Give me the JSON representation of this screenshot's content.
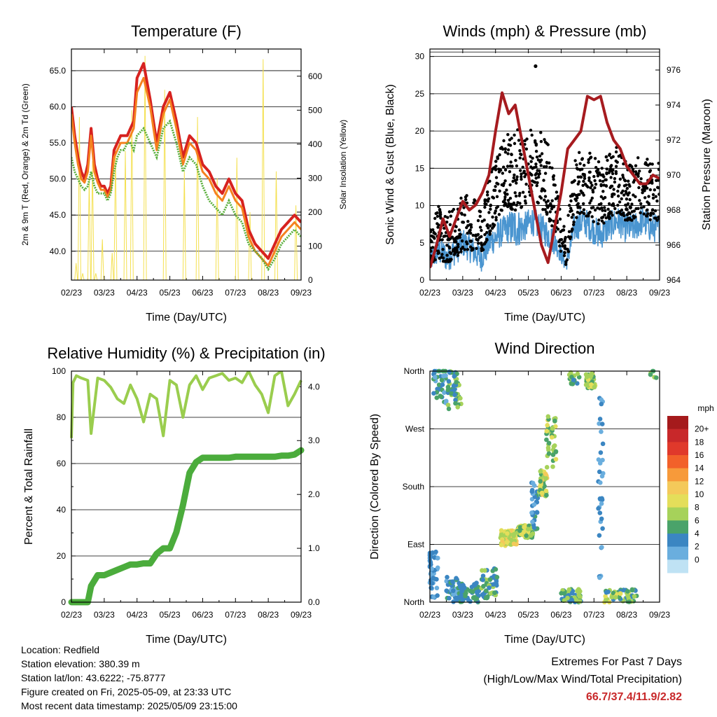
{
  "chart_data": [
    {
      "type": "line",
      "title": "Temperature (F)",
      "xlabel": "Time (Day/UTC)",
      "ylabel": "2m & 9m T (Red, Orange) & 2m Td (Green)",
      "y2label": "Solar Insolation (Yellow)",
      "x_ticks": [
        "02/23",
        "03/23",
        "04/23",
        "05/23",
        "06/23",
        "07/23",
        "08/23",
        "09/23"
      ],
      "ylim": [
        36,
        68
      ],
      "y_ticks": [
        "40.0",
        "45.0",
        "50.0",
        "55.0",
        "60.0",
        "65.0"
      ],
      "y_tick_values": [
        40,
        45,
        50,
        55,
        60,
        65
      ],
      "y2lim": [
        0,
        680
      ],
      "y2_ticks": [
        "0",
        "100",
        "200",
        "300",
        "400",
        "500",
        "600"
      ],
      "y2_tick_values": [
        0,
        100,
        200,
        300,
        400,
        500,
        600
      ],
      "grid": true,
      "x": [
        0,
        0.1,
        0.2,
        0.3,
        0.4,
        0.5,
        0.6,
        0.7,
        0.8,
        0.9,
        1.0,
        1.1,
        1.2,
        1.3,
        1.4,
        1.5,
        1.6,
        1.7,
        1.8,
        1.9,
        2.0,
        2.2,
        2.4,
        2.6,
        2.8,
        3.0,
        3.2,
        3.4,
        3.6,
        3.8,
        4.0,
        4.2,
        4.4,
        4.6,
        4.8,
        5.0,
        5.2,
        5.4,
        5.6,
        5.8,
        6.0,
        6.2,
        6.4,
        6.6,
        6.8,
        7.0
      ],
      "series": [
        {
          "role": "T2m",
          "color": "#d7221f",
          "values": [
            60,
            56,
            53,
            51,
            50,
            52,
            57,
            52,
            50,
            49,
            49,
            48,
            49,
            54,
            55,
            56,
            56,
            56,
            57,
            58,
            64,
            66,
            61,
            55,
            60,
            62,
            58,
            53,
            56,
            55,
            52,
            51,
            49,
            48,
            50,
            48,
            47,
            43,
            41,
            40,
            39,
            41,
            43,
            44,
            45,
            44
          ]
        },
        {
          "role": "T9m",
          "color": "#f5811f",
          "values": [
            59,
            55,
            52,
            50,
            49.5,
            51,
            56,
            51,
            49.5,
            48.5,
            48.5,
            47.5,
            48.5,
            53,
            54,
            55,
            55,
            55,
            56,
            57,
            62,
            64,
            60,
            54,
            59,
            61,
            57,
            52,
            55,
            54,
            51,
            50,
            48,
            47,
            49,
            47,
            46,
            42,
            40,
            39,
            38,
            40,
            42,
            43,
            44,
            43
          ]
        },
        {
          "role": "Td2m",
          "color": "#5aaf3c",
          "values": [
            53,
            51,
            50,
            49,
            48.5,
            49,
            51,
            49,
            48,
            48,
            48,
            47,
            48,
            51,
            53,
            54,
            54,
            55,
            55,
            54,
            56,
            57,
            55,
            53,
            57,
            58,
            55,
            51,
            53,
            52,
            49,
            47,
            46,
            45,
            47,
            45,
            44,
            41,
            40,
            39,
            37.5,
            39,
            41,
            42,
            43,
            42
          ]
        },
        {
          "role": "Solar",
          "color": "#f4e050",
          "values": [
            0,
            50,
            480,
            20,
            0,
            300,
            350,
            20,
            0,
            120,
            0,
            0,
            80,
            380,
            0,
            0,
            380,
            0,
            500,
            0,
            0,
            660,
            0,
            0,
            560,
            0,
            0,
            320,
            0,
            480,
            0,
            0,
            300,
            0,
            0,
            360,
            0,
            200,
            0,
            650,
            0,
            320,
            0,
            0,
            220,
            0
          ]
        }
      ]
    },
    {
      "type": "scatter",
      "title": "Winds (mph) & Pressure (mb)",
      "xlabel": "Time (Day/UTC)",
      "ylabel": "Sonic Wind & Gust (Blue, Black)",
      "y2label": "Station Pressure (Maroon)",
      "x_ticks": [
        "02/23",
        "03/23",
        "04/23",
        "05/23",
        "06/23",
        "07/23",
        "08/23",
        "09/23"
      ],
      "ylim": [
        0,
        31
      ],
      "y_ticks": [
        "0",
        "5",
        "10",
        "15",
        "20",
        "25",
        "30"
      ],
      "y_tick_values": [
        0,
        5,
        10,
        15,
        20,
        25,
        30
      ],
      "y2lim": [
        964,
        977.2
      ],
      "y2_ticks": [
        "964",
        "966",
        "968",
        "970",
        "972",
        "974",
        "976"
      ],
      "y2_tick_values": [
        964,
        966,
        968,
        970,
        972,
        974,
        976
      ],
      "grid": true,
      "series": [
        {
          "role": "Wind",
          "color": "#4a95d0",
          "note": "band",
          "low": [
            1,
            2,
            1,
            2,
            3,
            2,
            1,
            3,
            4,
            5,
            4,
            5,
            6,
            5,
            4,
            3,
            1,
            5,
            6,
            5,
            4,
            5,
            6,
            5,
            5,
            6,
            5,
            5
          ],
          "high": [
            4,
            6,
            5,
            6,
            7,
            6,
            5,
            7,
            8,
            9,
            10,
            9,
            10,
            9,
            8,
            6,
            3,
            9,
            10,
            9,
            8,
            9,
            10,
            9,
            9,
            10,
            9,
            9
          ]
        },
        {
          "role": "Gust",
          "color": "#000000",
          "low": [
            2,
            3,
            2,
            3,
            4,
            4,
            3,
            6,
            8,
            10,
            9,
            10,
            11,
            10,
            8,
            5,
            2,
            8,
            9,
            8,
            7,
            8,
            9,
            8,
            8,
            9,
            8,
            8
          ],
          "high": [
            7,
            10,
            9,
            10,
            12,
            11,
            10,
            14,
            17,
            20,
            21,
            19,
            21,
            20,
            18,
            12,
            6,
            17,
            18,
            17,
            16,
            17,
            18,
            16,
            16,
            17,
            16,
            16
          ]
        },
        {
          "role": "Pressure",
          "color": "#a61b1f",
          "x": [
            0,
            0.2,
            0.4,
            0.6,
            0.8,
            1.0,
            1.2,
            1.4,
            1.6,
            1.8,
            2.0,
            2.2,
            2.4,
            2.6,
            2.8,
            3.0,
            3.2,
            3.4,
            3.6,
            3.8,
            4.0,
            4.2,
            4.4,
            4.6,
            4.8,
            5.0,
            5.2,
            5.4,
            5.6,
            5.8,
            6.0,
            6.2,
            6.4,
            6.6,
            6.8,
            7.0
          ],
          "values": [
            964.7,
            966,
            967.5,
            966.5,
            967.5,
            968.5,
            968,
            968.3,
            969,
            970,
            972.5,
            974.7,
            973.5,
            974,
            972,
            970,
            968,
            966,
            965,
            967,
            969,
            971.5,
            972,
            972.5,
            974.5,
            974.3,
            974.5,
            973,
            972,
            971.5,
            970.5,
            970,
            969.5,
            969.5,
            970,
            969.8
          ]
        }
      ]
    },
    {
      "type": "line",
      "title": "Relative Humidity (%) & Precipitation (in)",
      "xlabel": "Time (Day/UTC)",
      "ylabel": "Percent & Total Rainfall",
      "x_ticks": [
        "02/23",
        "03/23",
        "04/23",
        "05/23",
        "06/23",
        "07/23",
        "08/23",
        "09/23"
      ],
      "ylim": [
        0,
        100
      ],
      "y_ticks": [
        "0",
        "20",
        "40",
        "60",
        "80",
        "100"
      ],
      "y_tick_values": [
        0,
        20,
        40,
        60,
        80,
        100
      ],
      "y2lim": [
        0,
        4.29
      ],
      "y2_ticks": [
        "0.0",
        "1.0",
        "2.0",
        "3.0",
        "4.0"
      ],
      "y2_tick_values": [
        0,
        1,
        2,
        3,
        4
      ],
      "grid": true,
      "x": [
        0,
        0.05,
        0.15,
        0.3,
        0.5,
        0.6,
        0.8,
        1.0,
        1.2,
        1.4,
        1.6,
        1.8,
        2.0,
        2.2,
        2.4,
        2.6,
        2.8,
        3.0,
        3.2,
        3.4,
        3.6,
        3.8,
        4.0,
        4.2,
        4.4,
        4.6,
        4.8,
        5.0,
        5.2,
        5.4,
        5.6,
        5.8,
        6.0,
        6.2,
        6.4,
        6.6,
        6.8,
        7.0
      ],
      "series": [
        {
          "role": "RH",
          "color": "#9acd4e",
          "values": [
            71,
            95,
            98,
            97,
            96,
            73,
            97,
            96,
            93,
            88,
            86,
            94,
            88,
            78,
            90,
            88,
            72,
            96,
            94,
            80,
            94,
            98,
            92,
            97,
            98,
            99,
            96,
            97,
            95,
            100,
            94,
            90,
            82,
            98,
            100,
            85,
            90,
            96
          ]
        },
        {
          "role": "Precip",
          "color": "#4bac3c",
          "values": [
            0,
            0,
            0,
            0,
            0,
            0.3,
            0.5,
            0.5,
            0.55,
            0.6,
            0.65,
            0.7,
            0.7,
            0.72,
            0.72,
            0.9,
            1.0,
            1.0,
            1.3,
            1.8,
            2.4,
            2.6,
            2.68,
            2.68,
            2.68,
            2.68,
            2.68,
            2.7,
            2.7,
            2.7,
            2.7,
            2.7,
            2.7,
            2.7,
            2.72,
            2.72,
            2.74,
            2.82
          ]
        }
      ]
    },
    {
      "type": "scatter",
      "title": "Wind Direction",
      "xlabel": "Time (Day/UTC)",
      "ylabel": "Direction (Colored By Speed)",
      "x_ticks": [
        "02/23",
        "03/23",
        "04/23",
        "05/23",
        "06/23",
        "07/23",
        "08/23",
        "09/23"
      ],
      "y_ticks": [
        "North",
        "East",
        "South",
        "West",
        "North"
      ],
      "ylim": [
        0,
        360
      ],
      "colorbar_title": "mph",
      "colorbar_labels": [
        "20+",
        "18",
        "16",
        "14",
        "12",
        "10",
        "8",
        "6",
        "4",
        "2",
        "0"
      ],
      "colorbar_colors": [
        "#a51a1c",
        "#c8282a",
        "#e0392b",
        "#f2612a",
        "#f79a3a",
        "#f4c95a",
        "#e4de5a",
        "#a6d25a",
        "#4aa36a",
        "#3b86c2",
        "#6aaede",
        "#bfe2f4"
      ],
      "grid": true,
      "clusters": [
        {
          "x": 0.1,
          "y": 40,
          "spread": [
            0.15,
            40
          ],
          "n": 40,
          "speed": [
            0,
            4
          ]
        },
        {
          "x": 0.3,
          "y": 340,
          "spread": [
            0.2,
            30
          ],
          "n": 35,
          "speed": [
            0,
            6
          ]
        },
        {
          "x": 0.75,
          "y": 330,
          "spread": [
            0.2,
            30
          ],
          "n": 50,
          "speed": [
            2,
            8
          ]
        },
        {
          "x": 0.7,
          "y": 20,
          "spread": [
            0.2,
            20
          ],
          "n": 40,
          "speed": [
            1,
            5
          ]
        },
        {
          "x": 1.2,
          "y": 15,
          "spread": [
            0.3,
            15
          ],
          "n": 50,
          "speed": [
            2,
            6
          ]
        },
        {
          "x": 1.8,
          "y": 30,
          "spread": [
            0.25,
            25
          ],
          "n": 50,
          "speed": [
            2,
            7
          ]
        },
        {
          "x": 2.4,
          "y": 100,
          "spread": [
            0.25,
            12
          ],
          "n": 90,
          "speed": [
            6,
            11
          ]
        },
        {
          "x": 2.9,
          "y": 110,
          "spread": [
            0.25,
            10
          ],
          "n": 60,
          "speed": [
            5,
            10
          ]
        },
        {
          "x": 3.2,
          "y": 150,
          "spread": [
            0.1,
            40
          ],
          "n": 30,
          "speed": [
            1,
            5
          ]
        },
        {
          "x": 3.45,
          "y": 185,
          "spread": [
            0.12,
            20
          ],
          "n": 40,
          "speed": [
            5,
            11
          ]
        },
        {
          "x": 3.7,
          "y": 250,
          "spread": [
            0.15,
            40
          ],
          "n": 40,
          "speed": [
            4,
            9
          ]
        },
        {
          "x": 4.3,
          "y": 10,
          "spread": [
            0.3,
            10
          ],
          "n": 60,
          "speed": [
            2,
            8
          ]
        },
        {
          "x": 4.4,
          "y": 350,
          "spread": [
            0.15,
            10
          ],
          "n": 20,
          "speed": [
            3,
            8
          ]
        },
        {
          "x": 4.9,
          "y": 345,
          "spread": [
            0.15,
            12
          ],
          "n": 40,
          "speed": [
            5,
            9
          ]
        },
        {
          "x": 5.2,
          "y": 180,
          "spread": [
            0.08,
            150
          ],
          "n": 35,
          "speed": [
            0,
            4
          ]
        },
        {
          "x": 5.8,
          "y": 10,
          "spread": [
            0.5,
            10
          ],
          "n": 60,
          "speed": [
            3,
            9
          ]
        },
        {
          "x": 6.8,
          "y": 355,
          "spread": [
            0.1,
            6
          ],
          "n": 6,
          "speed": [
            4,
            8
          ]
        }
      ]
    }
  ],
  "info": {
    "location": "Location: Redfield",
    "elevation": "Station elevation: 380.39 m",
    "latlon": "Station lat/lon: 43.6222; -75.8777",
    "created": "Figure created on Fri, 2025-05-09, at 23:33 UTC",
    "recent": "Most recent data timestamp: 2025/05/09 23:15:00"
  },
  "extremes": {
    "title": "Extremes For Past 7 Days",
    "subtitle": "(High/Low/Max Wind/Total Precipitation)",
    "values": "66.7/37.4/11.9/2.82"
  }
}
